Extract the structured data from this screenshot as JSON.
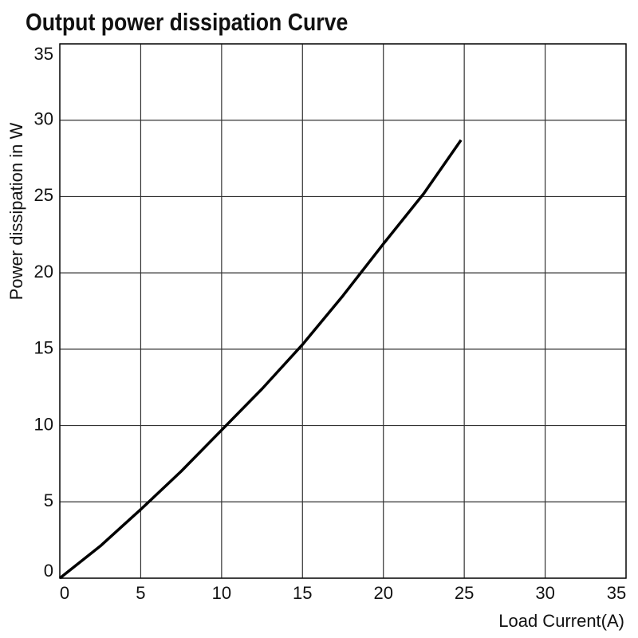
{
  "chart_data": {
    "type": "line",
    "title": "Output power dissipation Curve",
    "x_label": "Load Current(A)",
    "y_label": "Power dissipation in W",
    "series": [
      {
        "color": "#000000",
        "x": [
          0,
          2.5,
          5,
          7.5,
          10,
          12.5,
          15,
          17.5,
          20,
          22.5,
          24.8
        ],
        "values": [
          0,
          2.1,
          4.5,
          7.0,
          9.7,
          12.4,
          15.3,
          18.5,
          21.9,
          25.2,
          28.7
        ]
      }
    ],
    "xlim": [
      0,
      35
    ],
    "xticks": [
      0,
      5,
      10,
      15,
      20,
      25,
      30,
      35
    ],
    "ylim": [
      0,
      35
    ],
    "yticks": [
      0,
      5,
      10,
      15,
      20,
      25,
      30,
      35
    ],
    "grid": true
  }
}
